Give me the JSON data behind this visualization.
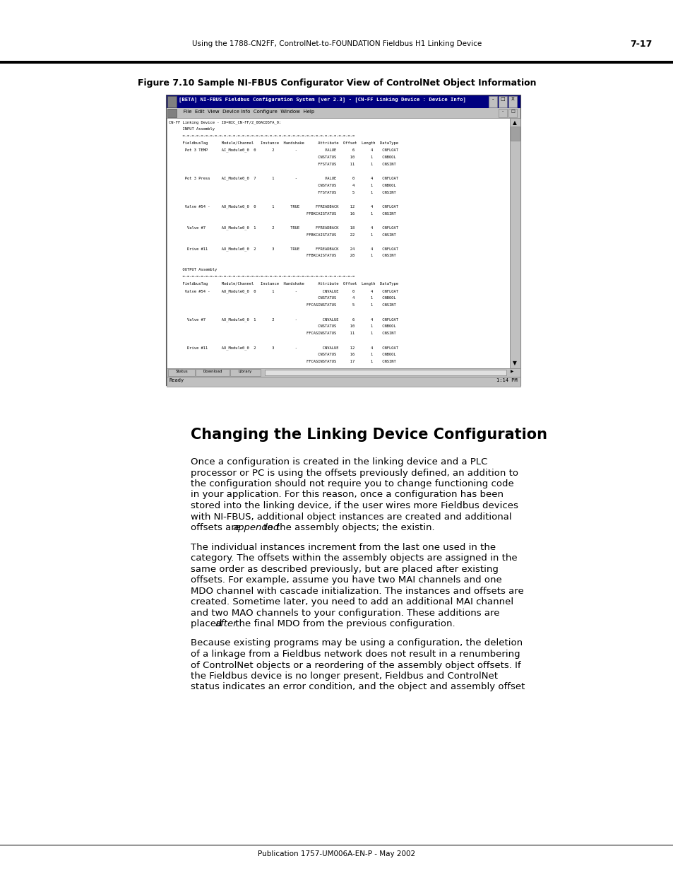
{
  "page_header_left": "Using the 1788-CN2FF, ControlNet-to-FOUNDATION Fieldbus H1 Linking Device",
  "page_header_right": "7-17",
  "figure_title": "Figure 7.10 Sample NI-FBUS Configurator View of ControlNet Object Information",
  "footer_text": "Publication 1757-UM006A-EN-P - May 2002",
  "section_title": "Changing the Linking Device Configuration",
  "paragraph1_parts": [
    {
      "text": "Once a configuration is created in the linking device and a PLC",
      "italic": false
    },
    {
      "text": "processor or PC is using the offsets previously defined, an addition to",
      "italic": false
    },
    {
      "text": "the configuration should not require you to change functioning code",
      "italic": false
    },
    {
      "text": "in your application. For this reason, once a configuration has been",
      "italic": false
    },
    {
      "text": "stored into the linking device, if the user wires more Fieldbus devices",
      "italic": false
    },
    {
      "text": "with NI-FBUS, additional object instances are created and additional",
      "italic": false
    },
    {
      "text": "offsets are ",
      "italic": false,
      "cont": "appended",
      "cont_italic": true,
      "rest": " to the assembly objects; the existin."
    }
  ],
  "paragraph2_parts": [
    {
      "text": "The individual instances increment from the last one used in the",
      "italic": false
    },
    {
      "text": "category. The offsets within the assembly objects are assigned in the",
      "italic": false
    },
    {
      "text": "same order as described previously, but are placed after existing",
      "italic": false
    },
    {
      "text": "offsets. For example, assume you have two MAI channels and one",
      "italic": false
    },
    {
      "text": "MDO channel with cascade initialization. The instances and offsets are",
      "italic": false
    },
    {
      "text": "created. Sometime later, you need to add an additional MAI channel",
      "italic": false
    },
    {
      "text": "and two MAO channels to your configuration. These additions are",
      "italic": false
    },
    {
      "text": "placed ",
      "italic": false,
      "cont": "after",
      "cont_italic": true,
      "rest": " the final MDO from the previous configuration."
    }
  ],
  "paragraph3_parts": [
    {
      "text": "Because existing programs may be using a configuration, the deletion",
      "italic": false
    },
    {
      "text": "of a linkage from a Fieldbus network does not result in a renumbering",
      "italic": false
    },
    {
      "text": "of ControlNet objects or a reordering of the assembly object offsets. If",
      "italic": false
    },
    {
      "text": "the Fieldbus device is no longer present, Fieldbus and ControlNet",
      "italic": false
    },
    {
      "text": "status indicates an error condition, and the object and assembly offset",
      "italic": false
    }
  ],
  "bg_color": "#ffffff",
  "screenshot_title_text": "[BETA] NI-FBUS Fieldbus Configuration System [ver 2.3] - [CN-FF Linking Device : Device Info]",
  "screenshot_menu_text": "   File  Edit  View  Device Info  Configure  Window  Help",
  "screen_lines": [
    "CN-FF Linking Device - ID=NIC_CN-FF/2_00ACD5FA_0:",
    "      INPUT Assembly",
    "      =-=-=-=-=-=-=-=-=-=-=-=-=-=-=-=-=-=-=-=-=-=-=-=-=-=-=-=-=-=-=-=-=-=-=-=-=-=",
    "      FieldbusTag      Module/Channel   Instance  Handshake      Attribute  Offset  Length  DataType",
    "       Pot 3 TEMP      AI_Module0_0  0       2         -            VALUE       6       4    CNFLOAT",
    "                                                                 CNSTATUS      10       1    CNBOOL",
    "                                                                 FFSTATUS      11       1    CNSINT",
    "",
    "       Pot 3 Press     AI_Module0_0  7       1         -            VALUE       0       4    CNFLOAT",
    "                                                                 CNSTATUS       4       1    CNBOOL",
    "                                                                 FFSTATUS       5       1    CNSINT",
    "",
    "       Valve #54 -     AO_Module0_0  0       1       TRUE       FFREADBACK     12       4    CNFLOAT",
    "                                                            FFBKCAISTATUS      16       1    CNSINT",
    "",
    "        Valve #7       AO_Module0_0  1       2       TRUE       FFREADBACK     18       4    CNFLOAT",
    "                                                            FFBKCAISTATUS      22       1    CNSINT",
    "",
    "        Drive #11      AO_Module0_0  2       3       TRUE       FFREADBACK     24       4    CNFLOAT",
    "                                                            FFBKCAISTATUS      28       1    CNSINT",
    "",
    "      OUTPUT Assembly",
    "      =-=-=-=-=-=-=-=-=-=-=-=-=-=-=-=-=-=-=-=-=-=-=-=-=-=-=-=-=-=-=-=-=-=-=-=-=-=",
    "      FieldbusTag      Module/Channel   Instance  Handshake      Attribute  Offset  Length  DataType",
    "       Valve #54 -     AO_Module0_0  0       1         -           CNVALUE      0       4    CNFLOAT",
    "                                                                 CNSTATUS       4       1    CNBOOL",
    "                                                            FFCASINSTATUS       5       1    CNSINT",
    "",
    "        Valve #7       AO_Module0_0  1       2         -           CNVALUE      6       4    CNFLOAT",
    "                                                                 CNSTATUS      10       1    CNBOOL",
    "                                                            FFCASINSTATUS      11       1    CNSINT",
    "",
    "        Drive #11      AO_Module0_0  2       3         -           CNVALUE     12       4    CNFLOAT",
    "                                                                 CNSTATUS      16       1    CNBOOL",
    "                                                            FFCASINSTATUS      17       1    CNSINT"
  ],
  "screenshot_status_bar_left": "Ready",
  "screenshot_status_bar_right": "1:14 PM"
}
